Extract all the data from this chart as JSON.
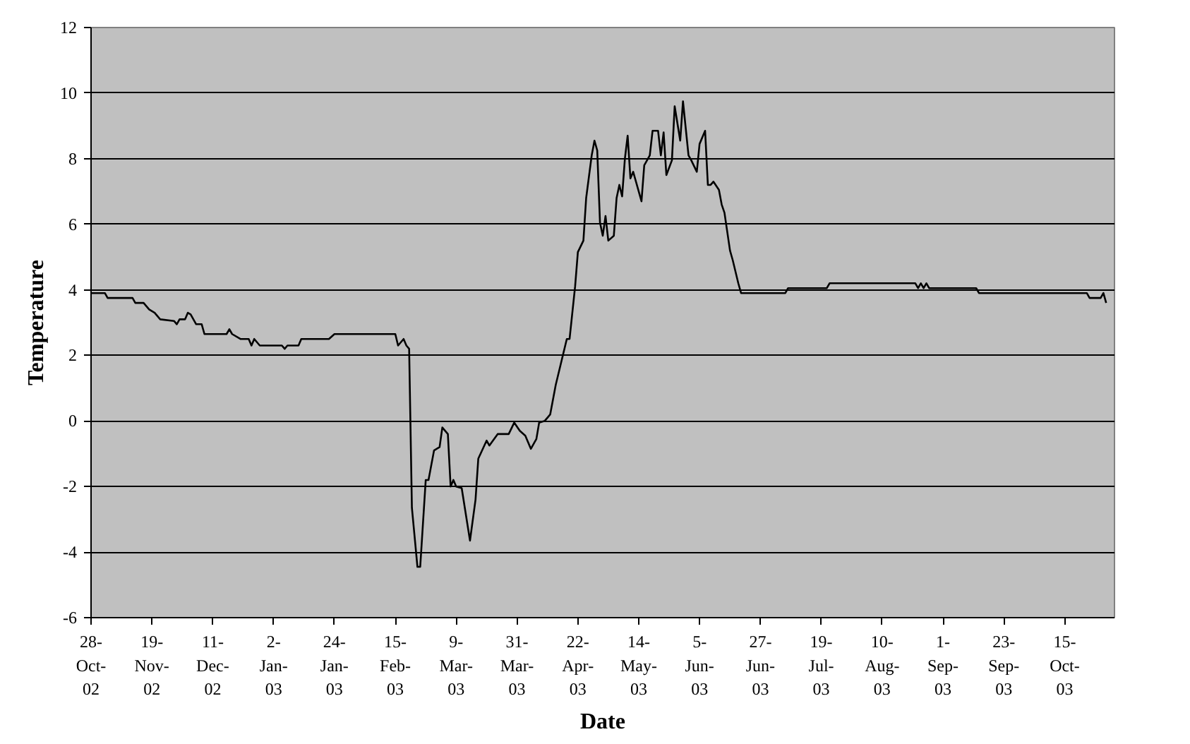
{
  "chart_data": {
    "type": "line",
    "xlabel": "Date",
    "ylabel": "Temperature",
    "grid": "y",
    "marker": "none",
    "line_style": "solid",
    "xlim": [
      "2002-10-28",
      "2003-11-02"
    ],
    "ylim": [
      -6,
      12
    ],
    "yticks": [
      -6,
      -4,
      -2,
      0,
      2,
      4,
      6,
      8,
      10,
      12
    ],
    "xticks": [
      {
        "value": "2002-10-28",
        "label": "28-Oct-02"
      },
      {
        "value": "2002-11-19",
        "label": "19-Nov-02"
      },
      {
        "value": "2002-12-11",
        "label": "11-Dec-02"
      },
      {
        "value": "2003-01-02",
        "label": "2-Jan-03"
      },
      {
        "value": "2003-01-24",
        "label": "24-Jan-03"
      },
      {
        "value": "2003-02-15",
        "label": "15-Feb-03"
      },
      {
        "value": "2003-03-09",
        "label": "9-Mar-03"
      },
      {
        "value": "2003-03-31",
        "label": "31-Mar-03"
      },
      {
        "value": "2003-04-22",
        "label": "22-Apr-03"
      },
      {
        "value": "2003-05-14",
        "label": "14-May-03"
      },
      {
        "value": "2003-06-05",
        "label": "5-Jun-03"
      },
      {
        "value": "2003-06-27",
        "label": "27-Jun-03"
      },
      {
        "value": "2003-07-19",
        "label": "19-Jul-03"
      },
      {
        "value": "2003-08-10",
        "label": "10-Aug-03"
      },
      {
        "value": "2003-09-01",
        "label": "1-Sep-03"
      },
      {
        "value": "2003-09-23",
        "label": "23-Sep-03"
      },
      {
        "value": "2003-10-15",
        "label": "15-Oct-03"
      }
    ],
    "x": [
      "2002-10-28",
      "2002-11-02",
      "2002-11-03",
      "2002-11-12",
      "2002-11-13",
      "2002-11-16",
      "2002-11-18",
      "2002-11-20",
      "2002-11-22",
      "2002-11-27",
      "2002-11-28",
      "2002-11-29",
      "2002-12-01",
      "2002-12-02",
      "2002-12-03",
      "2002-12-05",
      "2002-12-07",
      "2002-12-08",
      "2002-12-16",
      "2002-12-17",
      "2002-12-18",
      "2002-12-21",
      "2002-12-24",
      "2002-12-25",
      "2002-12-26",
      "2002-12-28",
      "2003-01-05",
      "2003-01-06",
      "2003-01-07",
      "2003-01-11",
      "2003-01-12",
      "2003-01-22",
      "2003-01-24",
      "2003-02-15",
      "2003-02-16",
      "2003-02-18",
      "2003-02-19",
      "2003-02-20",
      "2003-02-21",
      "2003-02-23",
      "2003-02-24",
      "2003-02-26",
      "2003-02-27",
      "2003-03-01",
      "2003-03-03",
      "2003-03-04",
      "2003-03-06",
      "2003-03-07",
      "2003-03-08",
      "2003-03-09",
      "2003-03-11",
      "2003-03-14",
      "2003-03-16",
      "2003-03-17",
      "2003-03-20",
      "2003-03-21",
      "2003-03-24",
      "2003-03-28",
      "2003-03-30",
      "2003-04-01",
      "2003-04-03",
      "2003-04-05",
      "2003-04-07",
      "2003-04-08",
      "2003-04-10",
      "2003-04-12",
      "2003-04-14",
      "2003-04-16",
      "2003-04-18",
      "2003-04-19",
      "2003-04-21",
      "2003-04-22",
      "2003-04-24",
      "2003-04-25",
      "2003-04-27",
      "2003-04-28",
      "2003-04-29",
      "2003-04-30",
      "2003-05-01",
      "2003-05-02",
      "2003-05-03",
      "2003-05-05",
      "2003-05-06",
      "2003-05-07",
      "2003-05-08",
      "2003-05-09",
      "2003-05-10",
      "2003-05-11",
      "2003-05-12",
      "2003-05-15",
      "2003-05-16",
      "2003-05-18",
      "2003-05-19",
      "2003-05-21",
      "2003-05-22",
      "2003-05-23",
      "2003-05-24",
      "2003-05-26",
      "2003-05-27",
      "2003-05-29",
      "2003-05-30",
      "2003-06-01",
      "2003-06-02",
      "2003-06-04",
      "2003-06-05",
      "2003-06-07",
      "2003-06-08",
      "2003-06-09",
      "2003-06-10",
      "2003-06-12",
      "2003-06-13",
      "2003-06-14",
      "2003-06-16",
      "2003-06-17",
      "2003-06-19",
      "2003-06-20",
      "2003-07-06",
      "2003-07-07",
      "2003-07-21",
      "2003-07-22",
      "2003-08-22",
      "2003-08-23",
      "2003-08-24",
      "2003-08-25",
      "2003-08-26",
      "2003-08-27",
      "2003-09-13",
      "2003-09-14",
      "2003-10-23",
      "2003-10-24",
      "2003-10-28",
      "2003-10-29",
      "2003-10-30"
    ],
    "series": [
      {
        "color": "#000000",
        "values": [
          3.9,
          3.9,
          3.75,
          3.75,
          3.6,
          3.6,
          3.4,
          3.3,
          3.1,
          3.05,
          2.95,
          3.1,
          3.1,
          3.3,
          3.25,
          2.95,
          2.95,
          2.65,
          2.65,
          2.8,
          2.65,
          2.5,
          2.5,
          2.3,
          2.5,
          2.3,
          2.3,
          2.2,
          2.3,
          2.3,
          2.5,
          2.5,
          2.65,
          2.65,
          2.3,
          2.5,
          2.3,
          2.2,
          -2.65,
          -4.45,
          -4.45,
          -1.8,
          -1.8,
          -0.9,
          -0.8,
          -0.2,
          -0.4,
          -2.0,
          -1.8,
          -2.0,
          -2.05,
          -3.65,
          -2.4,
          -1.15,
          -0.6,
          -0.75,
          -0.4,
          -0.4,
          -0.05,
          -0.3,
          -0.45,
          -0.85,
          -0.55,
          -0.05,
          0,
          0.2,
          1.1,
          1.8,
          2.5,
          2.5,
          4.1,
          5.15,
          5.5,
          6.8,
          8.1,
          8.55,
          8.25,
          6.05,
          5.65,
          6.25,
          5.5,
          5.65,
          6.8,
          7.2,
          6.85,
          8.0,
          8.7,
          7.4,
          7.6,
          6.7,
          7.8,
          8.1,
          8.85,
          8.85,
          8.1,
          8.8,
          7.5,
          7.95,
          9.6,
          8.55,
          9.75,
          8.1,
          7.95,
          7.6,
          8.45,
          8.85,
          7.2,
          7.2,
          7.3,
          7.05,
          6.6,
          6.35,
          5.2,
          4.9,
          4.2,
          3.9,
          3.9,
          4.05,
          4.05,
          4.2,
          4.2,
          4.05,
          4.2,
          4.05,
          4.2,
          4.05,
          4.05,
          3.9,
          3.9,
          3.75,
          3.75,
          3.9,
          3.6
        ]
      }
    ]
  }
}
